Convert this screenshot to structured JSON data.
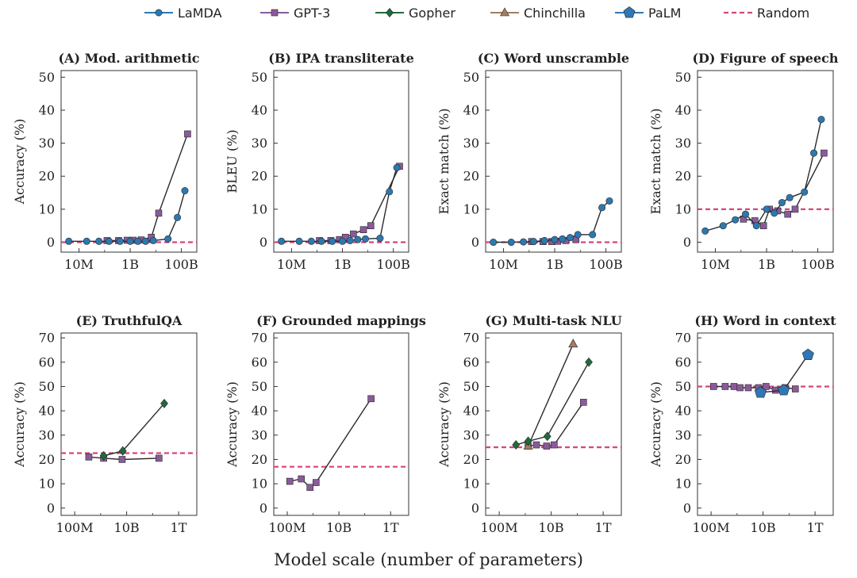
{
  "x_axis_label": "Model scale (number of parameters)",
  "colors": {
    "LaMDA": "#2b79b0",
    "GPT-3": "#8a5a9b",
    "Gopher": "#1f6b3a",
    "Chinchilla": "#a57c62",
    "PaLM": "#2f77b5",
    "Random": "#d6447f"
  },
  "legend": [
    {
      "name": "LaMDA",
      "marker": "circle"
    },
    {
      "name": "GPT-3",
      "marker": "square"
    },
    {
      "name": "Gopher",
      "marker": "diamond"
    },
    {
      "name": "Chinchilla",
      "marker": "triangle"
    },
    {
      "name": "PaLM",
      "marker": "pentagon"
    },
    {
      "name": "Random",
      "marker": "dashed-line"
    }
  ],
  "chart_data": [
    {
      "type": "line",
      "title": "(A) Mod. arithmetic",
      "ylabel": "Accuracy (%)",
      "x_scale": "log",
      "xlim": [
        2000000,
        400000000000
      ],
      "ylim": [
        -3,
        52
      ],
      "x_ticks": [
        10000000,
        1000000000,
        100000000000
      ],
      "x_tick_labels": [
        "10M",
        "1B",
        "100B"
      ],
      "y_ticks": [
        0,
        10,
        20,
        30,
        40,
        50
      ],
      "y_tick_labels": [
        "0",
        "10",
        "20",
        "30",
        "40",
        "50"
      ],
      "random_baseline": 0,
      "series": [
        {
          "name": "GPT-3",
          "x": [
            125000000,
            350000000,
            760000000,
            1300000000,
            2700000000,
            6700000000,
            13000000000,
            175000000000
          ],
          "y": [
            0.5,
            0.5,
            0.6,
            0.6,
            0.7,
            1.5,
            8.8,
            32.8
          ]
        },
        {
          "name": "LaMDA",
          "x": [
            4000000,
            20000000,
            60000000,
            150000000,
            400000000,
            1000000000,
            2000000000,
            4000000000,
            8000000000,
            30000000000,
            70000000000,
            137000000000
          ],
          "y": [
            0.3,
            0.3,
            0.3,
            0.3,
            0.3,
            0.3,
            0.3,
            0.3,
            0.5,
            1.0,
            7.5,
            15.6
          ]
        }
      ]
    },
    {
      "type": "line",
      "title": "(B) IPA transliterate",
      "ylabel": "BLEU (%)",
      "x_scale": "log",
      "xlim": [
        2000000,
        400000000000
      ],
      "ylim": [
        -3,
        52
      ],
      "x_ticks": [
        10000000,
        1000000000,
        100000000000
      ],
      "x_tick_labels": [
        "10M",
        "1B",
        "100B"
      ],
      "y_ticks": [
        0,
        10,
        20,
        30,
        40,
        50
      ],
      "y_tick_labels": [
        "0",
        "10",
        "20",
        "30",
        "40",
        "50"
      ],
      "random_baseline": 0,
      "series": [
        {
          "name": "GPT-3",
          "x": [
            125000000,
            350000000,
            760000000,
            1300000000,
            2700000000,
            6700000000,
            13000000000,
            175000000000
          ],
          "y": [
            0.5,
            0.5,
            0.8,
            1.5,
            2.5,
            3.8,
            5.0,
            23.0
          ]
        },
        {
          "name": "LaMDA",
          "x": [
            4000000,
            20000000,
            60000000,
            150000000,
            400000000,
            1000000000,
            2000000000,
            4000000000,
            8000000000,
            30000000000,
            70000000000,
            137000000000
          ],
          "y": [
            0.3,
            0.3,
            0.3,
            0.3,
            0.3,
            0.3,
            0.5,
            0.8,
            1.0,
            1.2,
            15.3,
            22.6
          ]
        }
      ]
    },
    {
      "type": "line",
      "title": "(C) Word unscramble",
      "ylabel": "Exact match (%)",
      "x_scale": "log",
      "xlim": [
        2000000,
        400000000000
      ],
      "ylim": [
        -3,
        52
      ],
      "x_ticks": [
        10000000,
        1000000000,
        100000000000
      ],
      "x_tick_labels": [
        "10M",
        "1B",
        "100B"
      ],
      "y_ticks": [
        0,
        10,
        20,
        30,
        40,
        50
      ],
      "y_tick_labels": [
        "0",
        "10",
        "20",
        "30",
        "40",
        "50"
      ],
      "random_baseline": 0,
      "series": [
        {
          "name": "GPT-3",
          "x": [
            125000000,
            350000000,
            760000000,
            1300000000,
            2700000000,
            6700000000
          ],
          "y": [
            0.2,
            0.2,
            0.2,
            0.3,
            0.5,
            0.8
          ]
        },
        {
          "name": "LaMDA",
          "x": [
            4000000,
            20000000,
            60000000,
            150000000,
            400000000,
            1000000000,
            2000000000,
            4000000000,
            8000000000,
            30000000000,
            70000000000,
            137000000000
          ],
          "y": [
            0.0,
            0.0,
            0.1,
            0.2,
            0.5,
            0.8,
            1.0,
            1.4,
            2.3,
            2.3,
            10.5,
            12.5
          ]
        }
      ]
    },
    {
      "type": "line",
      "title": "(D) Figure of speech",
      "ylabel": "Exact match (%)",
      "x_scale": "log",
      "xlim": [
        2000000,
        400000000000
      ],
      "ylim": [
        -3,
        52
      ],
      "x_ticks": [
        10000000,
        1000000000,
        100000000000
      ],
      "x_tick_labels": [
        "10M",
        "1B",
        "100B"
      ],
      "y_ticks": [
        0,
        10,
        20,
        30,
        40,
        50
      ],
      "y_tick_labels": [
        "0",
        "10",
        "20",
        "30",
        "40",
        "50"
      ],
      "random_baseline": 10,
      "series": [
        {
          "name": "GPT-3",
          "x": [
            125000000,
            350000000,
            760000000,
            1300000000,
            2700000000,
            6700000000,
            13000000000,
            175000000000
          ],
          "y": [
            7.0,
            6.5,
            5.0,
            10.0,
            9.5,
            8.5,
            10.0,
            27.0
          ]
        },
        {
          "name": "LaMDA",
          "x": [
            4000000,
            20000000,
            60000000,
            150000000,
            400000000,
            1000000000,
            2000000000,
            4000000000,
            8000000000,
            30000000000,
            70000000000,
            137000000000
          ],
          "y": [
            3.4,
            5.0,
            6.8,
            8.5,
            5.0,
            10.0,
            8.8,
            12.0,
            13.5,
            15.2,
            27.0,
            37.2
          ]
        }
      ]
    },
    {
      "type": "line",
      "title": "(E) TruthfulQA",
      "ylabel": "Accuracy (%)",
      "x_scale": "log",
      "xlim": [
        30000000,
        5000000000000
      ],
      "ylim": [
        -3,
        72
      ],
      "x_ticks": [
        100000000,
        10000000000,
        1000000000000
      ],
      "x_tick_labels": [
        "100M",
        "10B",
        "1T"
      ],
      "y_ticks": [
        0,
        10,
        20,
        30,
        40,
        50,
        60,
        70
      ],
      "y_tick_labels": [
        "0",
        "10",
        "20",
        "30",
        "40",
        "50",
        "60",
        "70"
      ],
      "random_baseline": 22.6,
      "series": [
        {
          "name": "GPT-3",
          "x": [
            350000000,
            1300000000,
            6700000000,
            175000000000
          ],
          "y": [
            21.0,
            20.5,
            20.0,
            20.5
          ]
        },
        {
          "name": "Gopher",
          "x": [
            1300000000,
            7100000000,
            280000000000
          ],
          "y": [
            21.5,
            23.5,
            43.0
          ]
        }
      ]
    },
    {
      "type": "line",
      "title": "(F) Grounded mappings",
      "ylabel": "Accuracy (%)",
      "x_scale": "log",
      "xlim": [
        30000000,
        5000000000000
      ],
      "ylim": [
        -3,
        72
      ],
      "x_ticks": [
        100000000,
        10000000000,
        1000000000000
      ],
      "x_tick_labels": [
        "100M",
        "10B",
        "1T"
      ],
      "y_ticks": [
        0,
        10,
        20,
        30,
        40,
        50,
        60,
        70
      ],
      "y_tick_labels": [
        "0",
        "10",
        "20",
        "30",
        "40",
        "50",
        "60",
        "70"
      ],
      "random_baseline": 17,
      "series": [
        {
          "name": "GPT-3",
          "x": [
            125000000,
            350000000,
            760000000,
            1300000000,
            175000000000
          ],
          "y": [
            11.0,
            12.0,
            8.5,
            10.5,
            45.0
          ]
        }
      ]
    },
    {
      "type": "line",
      "title": "(G) Multi-task NLU",
      "ylabel": "Accuracy (%)",
      "x_scale": "log",
      "xlim": [
        30000000,
        5000000000000
      ],
      "ylim": [
        -3,
        72
      ],
      "x_ticks": [
        100000000,
        10000000000,
        1000000000000
      ],
      "x_tick_labels": [
        "100M",
        "10B",
        "1T"
      ],
      "y_ticks": [
        0,
        10,
        20,
        30,
        40,
        50,
        60,
        70
      ],
      "y_tick_labels": [
        "0",
        "10",
        "20",
        "30",
        "40",
        "50",
        "60",
        "70"
      ],
      "random_baseline": 25,
      "series": [
        {
          "name": "GPT-3",
          "x": [
            1300000000,
            2700000000,
            6700000000,
            13000000000,
            175000000000
          ],
          "y": [
            25.5,
            26.0,
            25.5,
            26.0,
            43.5
          ]
        },
        {
          "name": "Chinchilla",
          "x": [
            1300000000,
            70000000000
          ],
          "y": [
            25.5,
            67.5
          ]
        },
        {
          "name": "Gopher",
          "x": [
            440000000,
            1300000000,
            7100000000,
            280000000000
          ],
          "y": [
            26.0,
            27.5,
            29.5,
            60.0
          ]
        }
      ]
    },
    {
      "type": "line",
      "title": "(H) Word in context",
      "ylabel": "Accuracy (%)",
      "x_scale": "log",
      "xlim": [
        30000000,
        5000000000000
      ],
      "ylim": [
        -3,
        72
      ],
      "x_ticks": [
        100000000,
        10000000000,
        1000000000000
      ],
      "x_tick_labels": [
        "100M",
        "10B",
        "1T"
      ],
      "y_ticks": [
        0,
        10,
        20,
        30,
        40,
        50,
        60,
        70
      ],
      "y_tick_labels": [
        "0",
        "10",
        "20",
        "30",
        "40",
        "50",
        "60",
        "70"
      ],
      "random_baseline": 50,
      "series": [
        {
          "name": "GPT-3",
          "x": [
            125000000,
            350000000,
            760000000,
            1300000000,
            2700000000,
            6700000000,
            13000000000,
            30000000000,
            70000000000,
            175000000000
          ],
          "y": [
            50.0,
            50.0,
            50.0,
            49.5,
            49.5,
            49.5,
            50.0,
            48.5,
            49.5,
            49.0
          ]
        },
        {
          "name": "PaLM",
          "x": [
            8000000000,
            62000000000,
            540000000000
          ],
          "y": [
            47.5,
            48.5,
            63.0
          ]
        }
      ]
    }
  ]
}
